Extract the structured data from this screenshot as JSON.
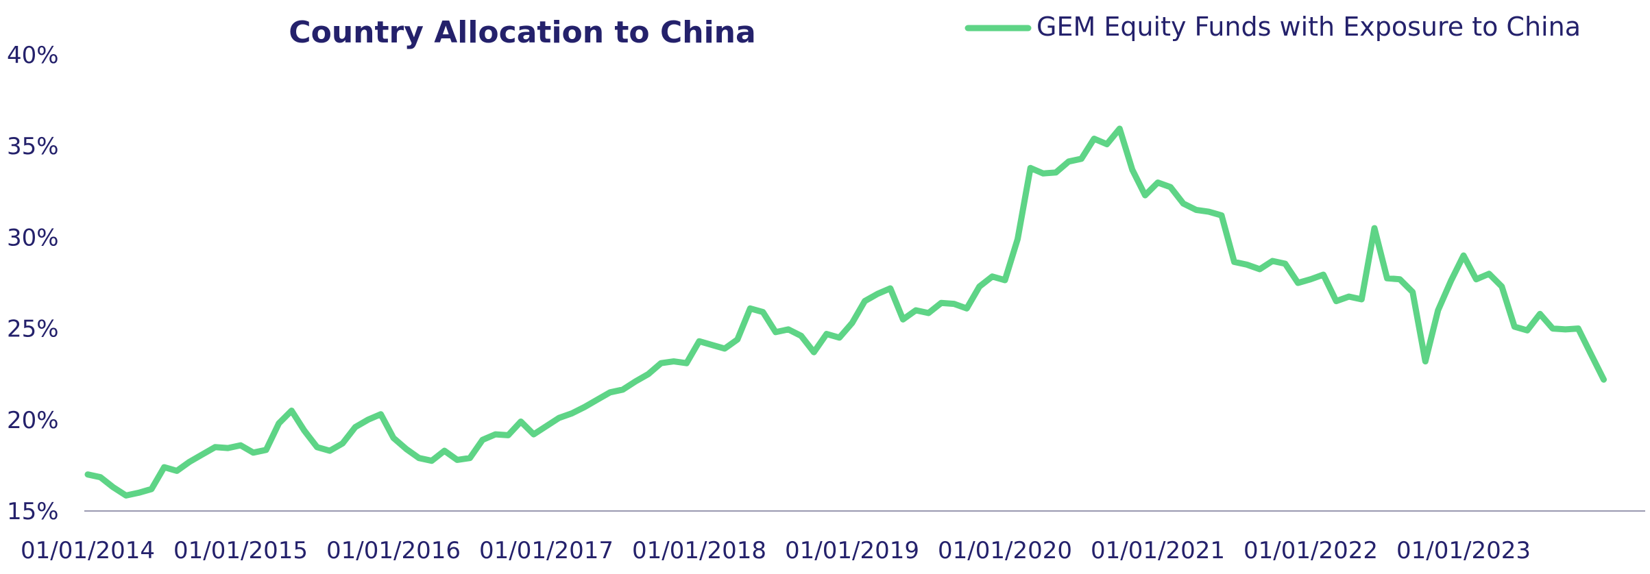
{
  "chart_data": {
    "type": "line",
    "title": "Country Allocation to China",
    "xlabel": "",
    "ylabel": "",
    "ylim": [
      15,
      40
    ],
    "xlim": [
      2014.0,
      2024.0
    ],
    "y_ticks": [
      "15%",
      "20%",
      "25%",
      "30%",
      "35%",
      "40%"
    ],
    "x_ticks": [
      "01/01/2014",
      "01/01/2015",
      "01/01/2016",
      "01/01/2017",
      "01/01/2018",
      "01/01/2019",
      "01/01/2020",
      "01/01/2021",
      "01/01/2022",
      "01/01/2023"
    ],
    "grid": false,
    "legend_position": "top-right",
    "colors": {
      "series": "#5ed486",
      "text": "#24216b",
      "axis": "#9a99b0"
    },
    "x": [
      2014.0,
      2014.083,
      2014.167,
      2014.25,
      2014.333,
      2014.417,
      2014.5,
      2014.583,
      2014.667,
      2014.75,
      2014.833,
      2014.917,
      2015.0,
      2015.083,
      2015.167,
      2015.25,
      2015.333,
      2015.417,
      2015.5,
      2015.583,
      2015.667,
      2015.75,
      2015.833,
      2015.917,
      2016.0,
      2016.083,
      2016.167,
      2016.25,
      2016.333,
      2016.417,
      2016.5,
      2016.583,
      2016.667,
      2016.75,
      2016.833,
      2016.917,
      2017.0,
      2017.083,
      2017.167,
      2017.25,
      2017.333,
      2017.417,
      2017.5,
      2017.583,
      2017.667,
      2017.75,
      2017.833,
      2017.917,
      2018.0,
      2018.083,
      2018.167,
      2018.25,
      2018.333,
      2018.417,
      2018.5,
      2018.583,
      2018.667,
      2018.75,
      2018.833,
      2018.917,
      2019.0,
      2019.083,
      2019.167,
      2019.25,
      2019.333,
      2019.417,
      2019.5,
      2019.583,
      2019.667,
      2019.75,
      2019.833,
      2019.917,
      2020.0,
      2020.083,
      2020.167,
      2020.25,
      2020.333,
      2020.417,
      2020.5,
      2020.583,
      2020.667,
      2020.75,
      2020.833,
      2020.917,
      2021.0,
      2021.083,
      2021.167,
      2021.25,
      2021.333,
      2021.417,
      2021.5,
      2021.583,
      2021.667,
      2021.75,
      2021.833,
      2021.917,
      2022.0,
      2022.083,
      2022.167,
      2022.25,
      2022.333,
      2022.417,
      2022.5,
      2022.583,
      2022.667,
      2022.75,
      2022.833,
      2022.917,
      2023.0,
      2023.083,
      2023.167,
      2023.25,
      2023.333,
      2023.417,
      2023.5,
      2023.583,
      2023.667,
      2023.75,
      2023.833,
      2023.917
    ],
    "series": [
      {
        "name": "GEM Equity Funds with Exposure to China",
        "values": [
          17.0,
          16.85,
          16.3,
          15.85,
          16.0,
          16.2,
          17.4,
          17.2,
          17.7,
          18.1,
          18.5,
          18.45,
          18.6,
          18.2,
          18.35,
          19.8,
          20.5,
          19.4,
          18.5,
          18.3,
          18.7,
          19.6,
          20.0,
          20.3,
          19.0,
          18.4,
          17.9,
          17.75,
          18.3,
          17.8,
          17.9,
          18.9,
          19.2,
          19.15,
          19.9,
          19.2,
          19.65,
          20.1,
          20.35,
          20.7,
          21.1,
          21.5,
          21.65,
          22.1,
          22.5,
          23.1,
          23.2,
          23.1,
          24.3,
          24.1,
          23.9,
          24.4,
          26.1,
          25.9,
          24.8,
          24.95,
          24.6,
          23.7,
          24.7,
          24.5,
          25.3,
          26.5,
          26.9,
          27.2,
          25.5,
          26.0,
          25.85,
          26.4,
          26.35,
          26.1,
          27.3,
          27.85,
          27.65,
          29.9,
          33.8,
          33.5,
          33.55,
          34.15,
          34.3,
          35.4,
          35.1,
          35.95,
          33.7,
          32.3,
          33.0,
          32.75,
          31.85,
          31.5,
          31.4,
          31.2,
          28.65,
          28.5,
          28.25,
          28.7,
          28.55,
          27.5,
          27.7,
          27.95,
          26.5,
          26.75,
          26.6,
          30.5,
          27.75,
          27.7,
          27.0,
          23.2,
          26.0,
          27.6,
          29.0,
          27.7,
          28.0,
          27.3,
          25.1,
          24.9,
          25.8,
          25.0,
          24.95,
          25.0,
          23.6,
          22.2
        ]
      }
    ]
  }
}
